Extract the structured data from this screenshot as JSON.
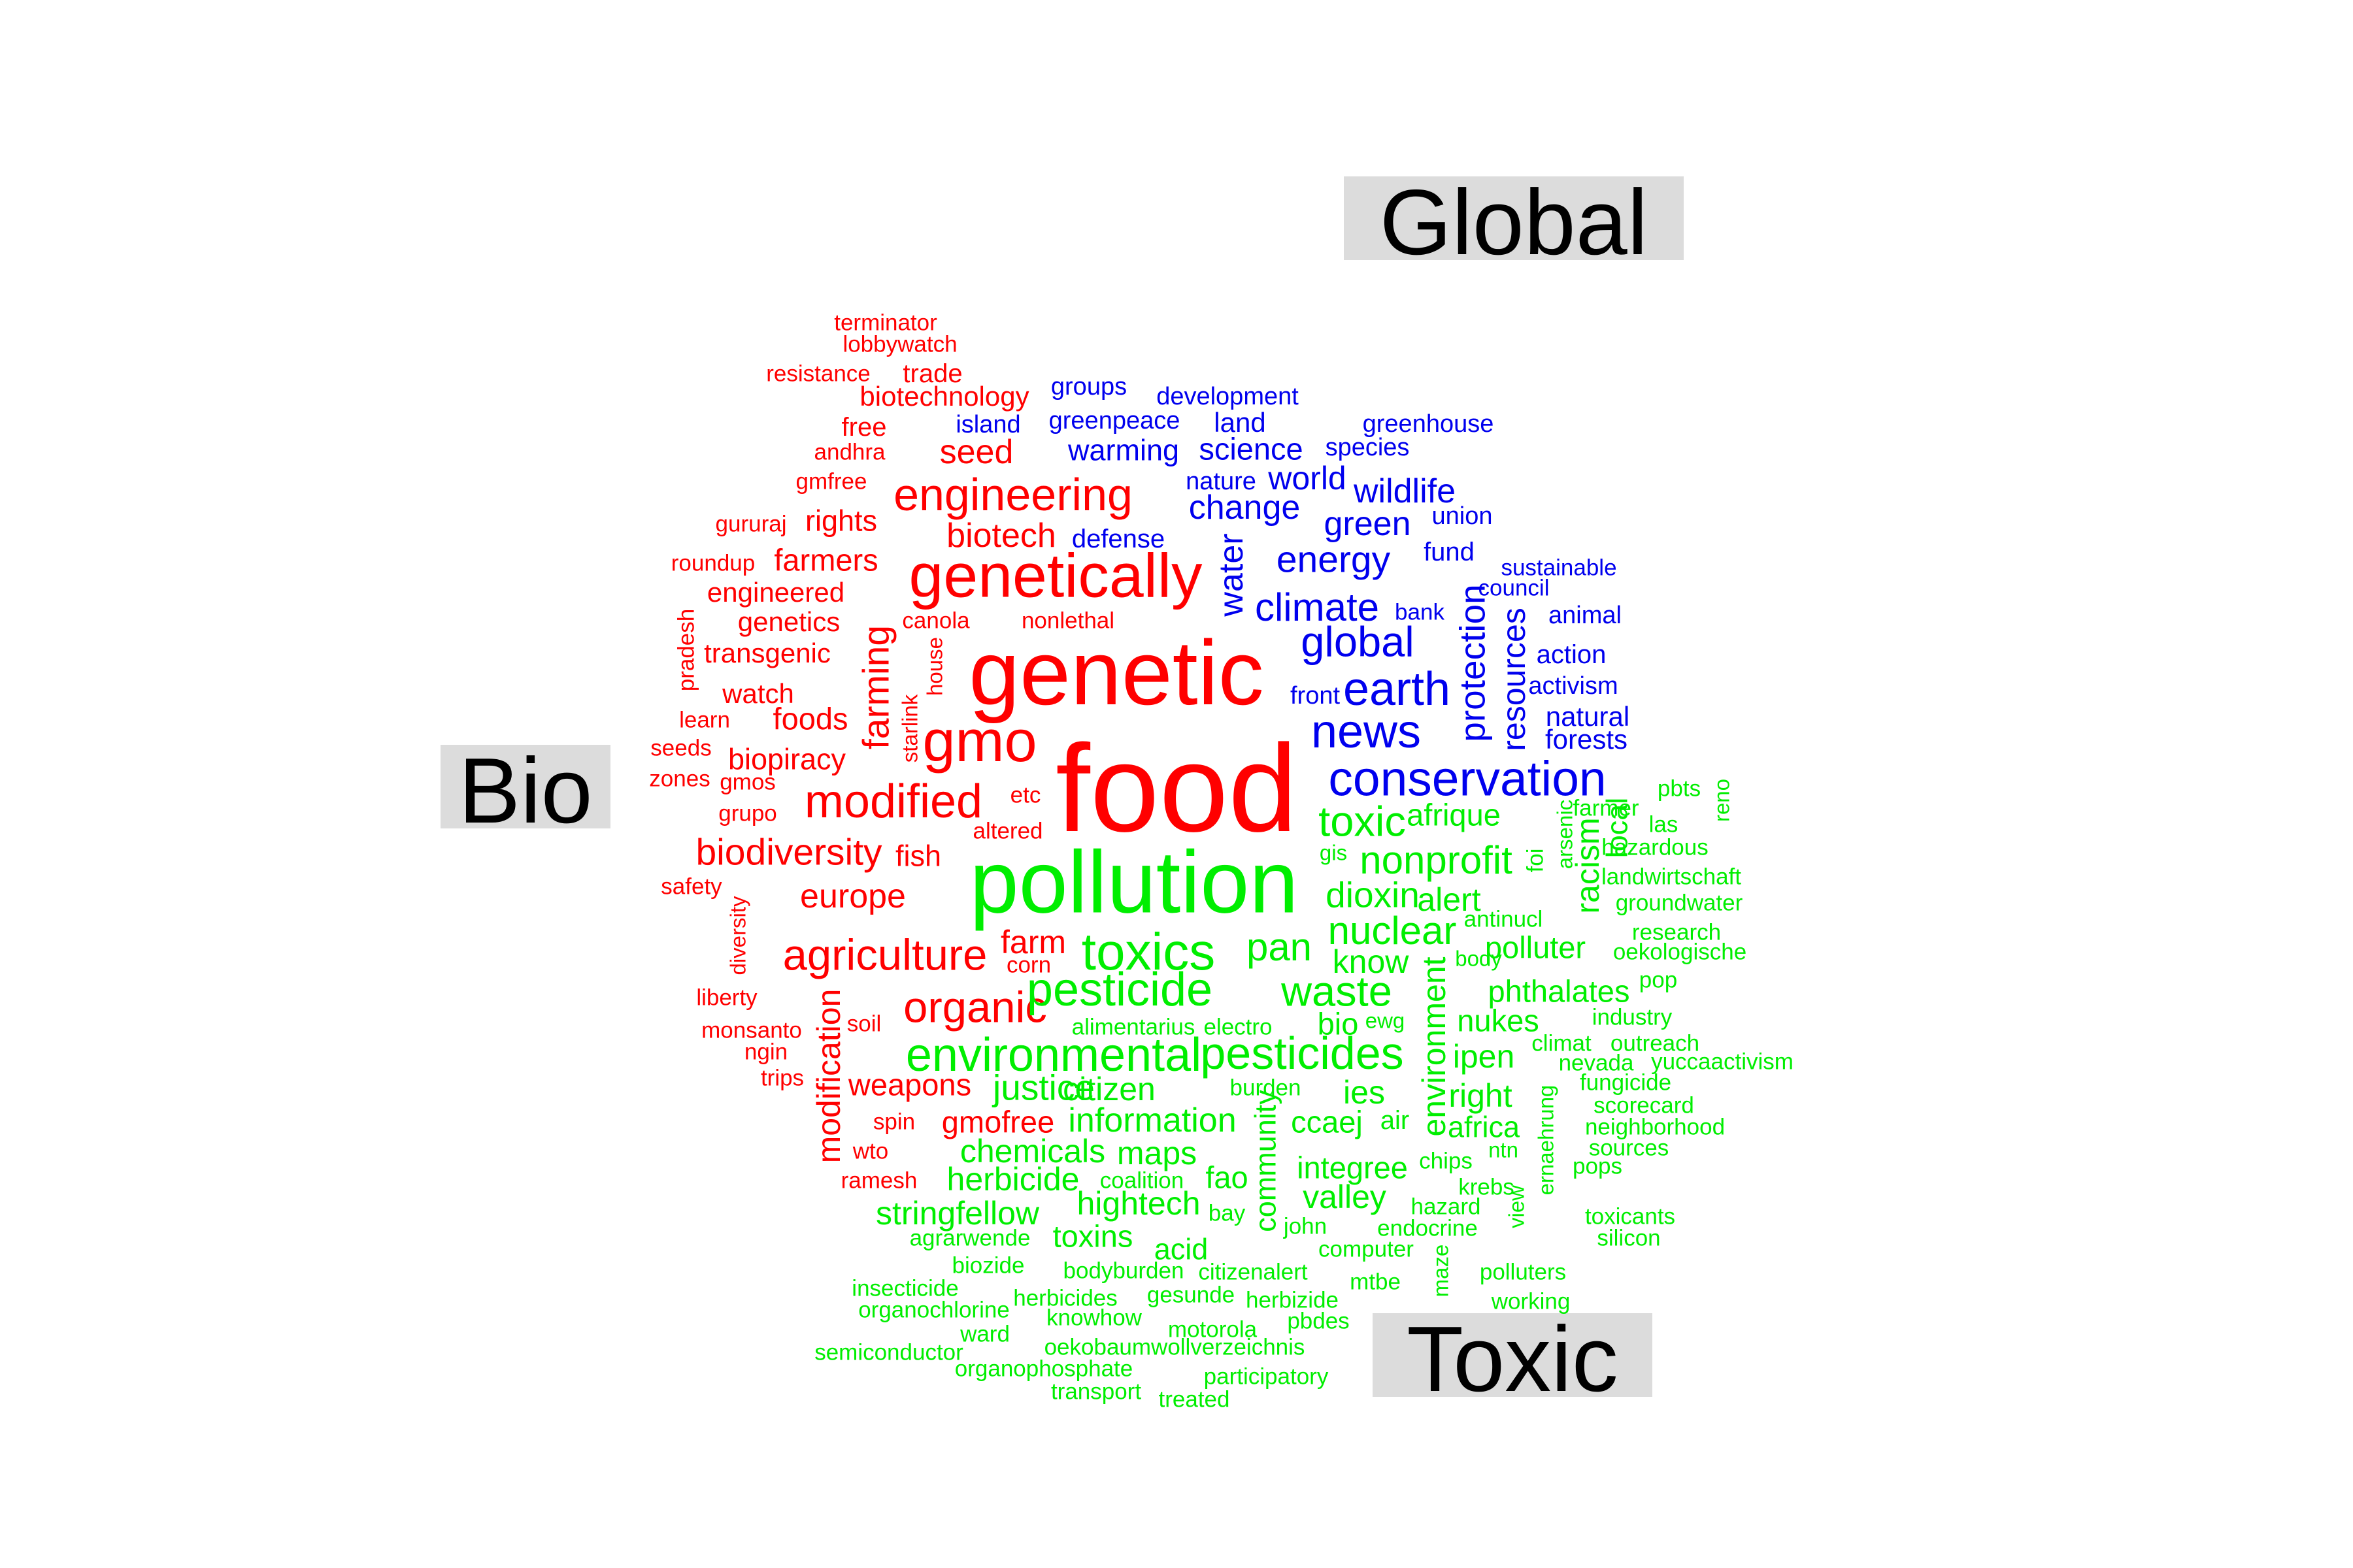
{
  "labels": {
    "global": "Global",
    "bio": "Bio",
    "toxic": "Toxic"
  },
  "colors": {
    "bio": "#ff0000",
    "global": "#0000ee",
    "toxic": "#00ee00"
  },
  "words": [
    {
      "t": "terminator",
      "c": "bio"
    },
    {
      "t": "lobbywatch",
      "c": "bio"
    },
    {
      "t": "resistance",
      "c": "bio"
    },
    {
      "t": "trade",
      "c": "bio"
    },
    {
      "t": "biotechnology",
      "c": "bio"
    },
    {
      "t": "free",
      "c": "bio"
    },
    {
      "t": "andhra",
      "c": "bio"
    },
    {
      "t": "seed",
      "c": "bio"
    },
    {
      "t": "gmfree",
      "c": "bio"
    },
    {
      "t": "engineering",
      "c": "bio"
    },
    {
      "t": "gururaj",
      "c": "bio"
    },
    {
      "t": "rights",
      "c": "bio"
    },
    {
      "t": "biotech",
      "c": "bio"
    },
    {
      "t": "roundup",
      "c": "bio"
    },
    {
      "t": "farmers",
      "c": "bio"
    },
    {
      "t": "genetically",
      "c": "bio"
    },
    {
      "t": "engineered",
      "c": "bio"
    },
    {
      "t": "pradesh",
      "c": "bio"
    },
    {
      "t": "genetics",
      "c": "bio"
    },
    {
      "t": "canola",
      "c": "bio"
    },
    {
      "t": "nonlethal",
      "c": "bio"
    },
    {
      "t": "transgenic",
      "c": "bio"
    },
    {
      "t": "farming",
      "c": "bio"
    },
    {
      "t": "house",
      "c": "bio"
    },
    {
      "t": "genetic",
      "c": "bio"
    },
    {
      "t": "watch",
      "c": "bio"
    },
    {
      "t": "learn",
      "c": "bio"
    },
    {
      "t": "foods",
      "c": "bio"
    },
    {
      "t": "starlink",
      "c": "bio"
    },
    {
      "t": "gmo",
      "c": "bio"
    },
    {
      "t": "seeds",
      "c": "bio"
    },
    {
      "t": "biopiracy",
      "c": "bio"
    },
    {
      "t": "zones",
      "c": "bio"
    },
    {
      "t": "gmos",
      "c": "bio"
    },
    {
      "t": "food",
      "c": "bio"
    },
    {
      "t": "modified",
      "c": "bio"
    },
    {
      "t": "grupo",
      "c": "bio"
    },
    {
      "t": "etc",
      "c": "bio"
    },
    {
      "t": "altered",
      "c": "bio"
    },
    {
      "t": "biodiversity",
      "c": "bio"
    },
    {
      "t": "fish",
      "c": "bio"
    },
    {
      "t": "safety",
      "c": "bio"
    },
    {
      "t": "europe",
      "c": "bio"
    },
    {
      "t": "diversity",
      "c": "bio"
    },
    {
      "t": "agriculture",
      "c": "bio"
    },
    {
      "t": "farm",
      "c": "bio"
    },
    {
      "t": "corn",
      "c": "bio"
    },
    {
      "t": "liberty",
      "c": "bio"
    },
    {
      "t": "organic",
      "c": "bio"
    },
    {
      "t": "soil",
      "c": "bio"
    },
    {
      "t": "monsanto",
      "c": "bio"
    },
    {
      "t": "modification",
      "c": "bio"
    },
    {
      "t": "ngin",
      "c": "bio"
    },
    {
      "t": "trips",
      "c": "bio"
    },
    {
      "t": "weapons",
      "c": "bio"
    },
    {
      "t": "spin",
      "c": "bio"
    },
    {
      "t": "gmofree",
      "c": "bio"
    },
    {
      "t": "wto",
      "c": "bio"
    },
    {
      "t": "ramesh",
      "c": "bio"
    },
    {
      "t": "groups",
      "c": "global"
    },
    {
      "t": "development",
      "c": "global"
    },
    {
      "t": "greenpeace",
      "c": "global"
    },
    {
      "t": "land",
      "c": "global"
    },
    {
      "t": "island",
      "c": "global"
    },
    {
      "t": "greenhouse",
      "c": "global"
    },
    {
      "t": "warming",
      "c": "global"
    },
    {
      "t": "science",
      "c": "global"
    },
    {
      "t": "species",
      "c": "global"
    },
    {
      "t": "nature",
      "c": "global"
    },
    {
      "t": "world",
      "c": "global"
    },
    {
      "t": "wildlife",
      "c": "global"
    },
    {
      "t": "change",
      "c": "global"
    },
    {
      "t": "union",
      "c": "global"
    },
    {
      "t": "green",
      "c": "global"
    },
    {
      "t": "defense",
      "c": "global"
    },
    {
      "t": "fund",
      "c": "global"
    },
    {
      "t": "energy",
      "c": "global"
    },
    {
      "t": "sustainable",
      "c": "global"
    },
    {
      "t": "council",
      "c": "global"
    },
    {
      "t": "water",
      "c": "global"
    },
    {
      "t": "climate",
      "c": "global"
    },
    {
      "t": "bank",
      "c": "global"
    },
    {
      "t": "animal",
      "c": "global"
    },
    {
      "t": "global",
      "c": "global"
    },
    {
      "t": "protection",
      "c": "global"
    },
    {
      "t": "resources",
      "c": "global"
    },
    {
      "t": "action",
      "c": "global"
    },
    {
      "t": "activism",
      "c": "global"
    },
    {
      "t": "front",
      "c": "global"
    },
    {
      "t": "earth",
      "c": "global"
    },
    {
      "t": "natural",
      "c": "global"
    },
    {
      "t": "forests",
      "c": "global"
    },
    {
      "t": "news",
      "c": "global"
    },
    {
      "t": "conservation",
      "c": "global"
    },
    {
      "t": "pbts",
      "c": "toxic"
    },
    {
      "t": "reno",
      "c": "toxic"
    },
    {
      "t": "toxic",
      "c": "toxic"
    },
    {
      "t": "afrique",
      "c": "toxic"
    },
    {
      "t": "arsenic",
      "c": "toxic"
    },
    {
      "t": "farmer",
      "c": "toxic"
    },
    {
      "t": "las",
      "c": "toxic"
    },
    {
      "t": "local",
      "c": "toxic"
    },
    {
      "t": "hazardous",
      "c": "toxic"
    },
    {
      "t": "pollution",
      "c": "toxic"
    },
    {
      "t": "gis",
      "c": "toxic"
    },
    {
      "t": "nonprofit",
      "c": "toxic"
    },
    {
      "t": "foi",
      "c": "toxic"
    },
    {
      "t": "racism",
      "c": "toxic"
    },
    {
      "t": "landwirtschaft",
      "c": "toxic"
    },
    {
      "t": "dioxin",
      "c": "toxic"
    },
    {
      "t": "alert",
      "c": "toxic"
    },
    {
      "t": "groundwater",
      "c": "toxic"
    },
    {
      "t": "antinucl",
      "c": "toxic"
    },
    {
      "t": "nuclear",
      "c": "toxic"
    },
    {
      "t": "research",
      "c": "toxic"
    },
    {
      "t": "toxics",
      "c": "toxic"
    },
    {
      "t": "pan",
      "c": "toxic"
    },
    {
      "t": "polluter",
      "c": "toxic"
    },
    {
      "t": "oekologische",
      "c": "toxic"
    },
    {
      "t": "know",
      "c": "toxic"
    },
    {
      "t": "body",
      "c": "toxic"
    },
    {
      "t": "environment",
      "c": "toxic"
    },
    {
      "t": "pop",
      "c": "toxic"
    },
    {
      "t": "pesticide",
      "c": "toxic"
    },
    {
      "t": "waste",
      "c": "toxic"
    },
    {
      "t": "phthalates",
      "c": "toxic"
    },
    {
      "t": "ewg",
      "c": "toxic"
    },
    {
      "t": "bio",
      "c": "toxic"
    },
    {
      "t": "nukes",
      "c": "toxic"
    },
    {
      "t": "industry",
      "c": "toxic"
    },
    {
      "t": "alimentarius",
      "c": "toxic"
    },
    {
      "t": "electro",
      "c": "toxic"
    },
    {
      "t": "climat",
      "c": "toxic"
    },
    {
      "t": "outreach",
      "c": "toxic"
    },
    {
      "t": "environmental",
      "c": "toxic"
    },
    {
      "t": "pesticides",
      "c": "toxic"
    },
    {
      "t": "ipen",
      "c": "toxic"
    },
    {
      "t": "nevada",
      "c": "toxic"
    },
    {
      "t": "yuccaactivism",
      "c": "toxic"
    },
    {
      "t": "justice",
      "c": "toxic"
    },
    {
      "t": "citizen",
      "c": "toxic"
    },
    {
      "t": "burden",
      "c": "toxic"
    },
    {
      "t": "ies",
      "c": "toxic"
    },
    {
      "t": "right",
      "c": "toxic"
    },
    {
      "t": "fungicide",
      "c": "toxic"
    },
    {
      "t": "ccaej",
      "c": "toxic"
    },
    {
      "t": "air",
      "c": "toxic"
    },
    {
      "t": "scorecard",
      "c": "toxic"
    },
    {
      "t": "information",
      "c": "toxic"
    },
    {
      "t": "community",
      "c": "toxic"
    },
    {
      "t": "africa",
      "c": "toxic"
    },
    {
      "t": "neighborhood",
      "c": "toxic"
    },
    {
      "t": "chemicals",
      "c": "toxic"
    },
    {
      "t": "maps",
      "c": "toxic"
    },
    {
      "t": "ntn",
      "c": "toxic"
    },
    {
      "t": "sources",
      "c": "toxic"
    },
    {
      "t": "herbicide",
      "c": "toxic"
    },
    {
      "t": "integree",
      "c": "toxic"
    },
    {
      "t": "chips",
      "c": "toxic"
    },
    {
      "t": "ernaehrung",
      "c": "toxic"
    },
    {
      "t": "pops",
      "c": "toxic"
    },
    {
      "t": "coalition",
      "c": "toxic"
    },
    {
      "t": "fao",
      "c": "toxic"
    },
    {
      "t": "krebs",
      "c": "toxic"
    },
    {
      "t": "hightech",
      "c": "toxic"
    },
    {
      "t": "valley",
      "c": "toxic"
    },
    {
      "t": "hazard",
      "c": "toxic"
    },
    {
      "t": "stringfellow",
      "c": "toxic"
    },
    {
      "t": "bay",
      "c": "toxic"
    },
    {
      "t": "view",
      "c": "toxic"
    },
    {
      "t": "toxicants",
      "c": "toxic"
    },
    {
      "t": "john",
      "c": "toxic"
    },
    {
      "t": "endocrine",
      "c": "toxic"
    },
    {
      "t": "silicon",
      "c": "toxic"
    },
    {
      "t": "toxins",
      "c": "toxic"
    },
    {
      "t": "agrarwende",
      "c": "toxic"
    },
    {
      "t": "acid",
      "c": "toxic"
    },
    {
      "t": "computer",
      "c": "toxic"
    },
    {
      "t": "maze",
      "c": "toxic"
    },
    {
      "t": "biozide",
      "c": "toxic"
    },
    {
      "t": "bodyburden",
      "c": "toxic"
    },
    {
      "t": "citizenalert",
      "c": "toxic"
    },
    {
      "t": "polluters",
      "c": "toxic"
    },
    {
      "t": "mtbe",
      "c": "toxic"
    },
    {
      "t": "insecticide",
      "c": "toxic"
    },
    {
      "t": "herbicides",
      "c": "toxic"
    },
    {
      "t": "gesunde",
      "c": "toxic"
    },
    {
      "t": "herbizide",
      "c": "toxic"
    },
    {
      "t": "working",
      "c": "toxic"
    },
    {
      "t": "organochlorine",
      "c": "toxic"
    },
    {
      "t": "knowhow",
      "c": "toxic"
    },
    {
      "t": "pbdes",
      "c": "toxic"
    },
    {
      "t": "ward",
      "c": "toxic"
    },
    {
      "t": "motorola",
      "c": "toxic"
    },
    {
      "t": "semiconductor",
      "c": "toxic"
    },
    {
      "t": "oekobaumwollverzeichnis",
      "c": "toxic"
    },
    {
      "t": "organophosphate",
      "c": "toxic"
    },
    {
      "t": "participatory",
      "c": "toxic"
    },
    {
      "t": "transport",
      "c": "toxic"
    },
    {
      "t": "treated",
      "c": "toxic"
    }
  ]
}
